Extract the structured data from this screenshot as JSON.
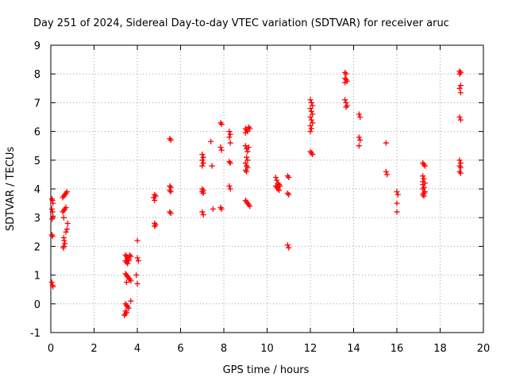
{
  "chart_data": {
    "type": "scatter",
    "title": "Day 251 of 2024, Sidereal Day-to-day VTEC variation (SDTVAR) for receiver aruc",
    "xlabel": "GPS time / hours",
    "ylabel": "SDTVAR / TECUs",
    "xlim": [
      0,
      20
    ],
    "ylim": [
      -1,
      9
    ],
    "xticks": [
      0,
      2,
      4,
      6,
      8,
      10,
      12,
      14,
      16,
      18,
      20
    ],
    "yticks": [
      -1,
      0,
      1,
      2,
      3,
      4,
      5,
      6,
      7,
      8,
      9
    ],
    "grid": true,
    "marker": "+",
    "color": "#ff0000",
    "series": [
      {
        "name": "SDTVAR",
        "points": [
          [
            0.05,
            3.65
          ],
          [
            0.08,
            3.6
          ],
          [
            0.1,
            3.5
          ],
          [
            0.05,
            3.3
          ],
          [
            0.08,
            3.2
          ],
          [
            0.1,
            3.05
          ],
          [
            0.06,
            2.95
          ],
          [
            0.05,
            2.4
          ],
          [
            0.08,
            2.35
          ],
          [
            0.05,
            0.75
          ],
          [
            0.08,
            0.65
          ],
          [
            0.1,
            0.6
          ],
          [
            0.55,
            3.7
          ],
          [
            0.6,
            3.75
          ],
          [
            0.65,
            3.8
          ],
          [
            0.7,
            3.85
          ],
          [
            0.75,
            3.9
          ],
          [
            0.55,
            3.2
          ],
          [
            0.6,
            3.25
          ],
          [
            0.65,
            3.3
          ],
          [
            0.7,
            3.35
          ],
          [
            0.6,
            3.0
          ],
          [
            0.6,
            2.3
          ],
          [
            0.62,
            2.2
          ],
          [
            0.65,
            2.1
          ],
          [
            0.6,
            2.0
          ],
          [
            0.58,
            1.95
          ],
          [
            0.7,
            2.5
          ],
          [
            0.75,
            2.6
          ],
          [
            0.78,
            2.8
          ],
          [
            3.45,
            1.7
          ],
          [
            3.5,
            1.65
          ],
          [
            3.55,
            1.6
          ],
          [
            3.6,
            1.55
          ],
          [
            3.65,
            1.7
          ],
          [
            3.7,
            1.65
          ],
          [
            3.45,
            1.5
          ],
          [
            3.5,
            1.45
          ],
          [
            3.55,
            1.4
          ],
          [
            3.6,
            1.5
          ],
          [
            3.45,
            1.05
          ],
          [
            3.5,
            1.0
          ],
          [
            3.55,
            0.95
          ],
          [
            3.6,
            0.9
          ],
          [
            3.65,
            0.85
          ],
          [
            3.7,
            0.8
          ],
          [
            3.5,
            0.75
          ],
          [
            3.45,
            0.0
          ],
          [
            3.5,
            -0.05
          ],
          [
            3.55,
            -0.1
          ],
          [
            3.6,
            -0.15
          ],
          [
            3.45,
            -0.25
          ],
          [
            3.5,
            -0.3
          ],
          [
            3.45,
            -0.35
          ],
          [
            3.4,
            -0.4
          ],
          [
            3.7,
            0.1
          ],
          [
            4.0,
            2.2
          ],
          [
            4.0,
            1.6
          ],
          [
            4.05,
            1.5
          ],
          [
            3.95,
            1.0
          ],
          [
            4.0,
            0.7
          ],
          [
            4.8,
            3.8
          ],
          [
            4.85,
            3.75
          ],
          [
            4.75,
            3.7
          ],
          [
            4.8,
            3.6
          ],
          [
            4.8,
            2.8
          ],
          [
            4.85,
            2.75
          ],
          [
            4.8,
            2.7
          ],
          [
            5.5,
            5.75
          ],
          [
            5.55,
            5.7
          ],
          [
            5.5,
            4.1
          ],
          [
            5.55,
            4.05
          ],
          [
            5.5,
            3.95
          ],
          [
            5.55,
            3.9
          ],
          [
            5.5,
            3.2
          ],
          [
            5.55,
            3.15
          ],
          [
            7.0,
            5.2
          ],
          [
            7.05,
            5.1
          ],
          [
            7.0,
            5.0
          ],
          [
            7.05,
            4.9
          ],
          [
            7.0,
            4.8
          ],
          [
            7.0,
            4.0
          ],
          [
            7.05,
            3.95
          ],
          [
            7.0,
            3.9
          ],
          [
            7.05,
            3.85
          ],
          [
            7.0,
            3.2
          ],
          [
            7.05,
            3.1
          ],
          [
            7.4,
            5.65
          ],
          [
            7.45,
            4.8
          ],
          [
            7.5,
            3.3
          ],
          [
            7.85,
            6.3
          ],
          [
            7.9,
            6.25
          ],
          [
            7.85,
            5.45
          ],
          [
            7.9,
            5.35
          ],
          [
            7.85,
            3.35
          ],
          [
            7.9,
            3.3
          ],
          [
            8.25,
            6.0
          ],
          [
            8.3,
            5.9
          ],
          [
            8.25,
            5.8
          ],
          [
            8.3,
            5.6
          ],
          [
            8.25,
            4.95
          ],
          [
            8.3,
            4.9
          ],
          [
            8.25,
            4.1
          ],
          [
            8.3,
            4.0
          ],
          [
            9.0,
            6.1
          ],
          [
            9.05,
            6.05
          ],
          [
            9.1,
            6.0
          ],
          [
            9.15,
            6.15
          ],
          [
            9.2,
            6.1
          ],
          [
            9.0,
            5.95
          ],
          [
            9.0,
            5.5
          ],
          [
            9.05,
            5.4
          ],
          [
            9.1,
            5.3
          ],
          [
            9.15,
            5.45
          ],
          [
            9.05,
            5.1
          ],
          [
            9.1,
            5.0
          ],
          [
            9.0,
            4.9
          ],
          [
            9.05,
            4.8
          ],
          [
            9.1,
            4.75
          ],
          [
            9.0,
            4.65
          ],
          [
            9.05,
            4.6
          ],
          [
            9.0,
            3.6
          ],
          [
            9.05,
            3.55
          ],
          [
            9.1,
            3.5
          ],
          [
            9.15,
            3.45
          ],
          [
            9.2,
            3.4
          ],
          [
            10.4,
            4.4
          ],
          [
            10.45,
            4.3
          ],
          [
            10.5,
            4.2
          ],
          [
            10.55,
            4.15
          ],
          [
            10.4,
            4.1
          ],
          [
            10.45,
            4.05
          ],
          [
            10.5,
            4.0
          ],
          [
            10.55,
            3.95
          ],
          [
            10.6,
            4.1
          ],
          [
            10.95,
            4.45
          ],
          [
            11.0,
            4.4
          ],
          [
            10.95,
            3.85
          ],
          [
            11.0,
            3.8
          ],
          [
            10.95,
            2.05
          ],
          [
            11.0,
            1.95
          ],
          [
            12.0,
            7.1
          ],
          [
            12.05,
            7.0
          ],
          [
            12.1,
            6.9
          ],
          [
            12.0,
            6.8
          ],
          [
            12.05,
            6.7
          ],
          [
            12.1,
            6.6
          ],
          [
            12.0,
            6.5
          ],
          [
            12.05,
            6.4
          ],
          [
            12.1,
            6.3
          ],
          [
            12.0,
            6.2
          ],
          [
            12.05,
            6.1
          ],
          [
            12.0,
            6.0
          ],
          [
            12.0,
            5.3
          ],
          [
            12.05,
            5.25
          ],
          [
            12.1,
            5.2
          ],
          [
            13.6,
            8.05
          ],
          [
            13.65,
            8.0
          ],
          [
            13.6,
            7.85
          ],
          [
            13.65,
            7.8
          ],
          [
            13.7,
            7.75
          ],
          [
            13.6,
            7.7
          ],
          [
            13.6,
            7.1
          ],
          [
            13.65,
            7.0
          ],
          [
            13.7,
            6.9
          ],
          [
            13.65,
            6.85
          ],
          [
            14.25,
            6.6
          ],
          [
            14.3,
            6.5
          ],
          [
            14.25,
            5.8
          ],
          [
            14.3,
            5.7
          ],
          [
            14.25,
            5.5
          ],
          [
            15.5,
            5.6
          ],
          [
            15.5,
            4.6
          ],
          [
            15.55,
            4.5
          ],
          [
            16.0,
            3.9
          ],
          [
            16.05,
            3.8
          ],
          [
            16.0,
            3.5
          ],
          [
            16.0,
            3.2
          ],
          [
            17.2,
            4.9
          ],
          [
            17.25,
            4.85
          ],
          [
            17.3,
            4.8
          ],
          [
            17.2,
            4.45
          ],
          [
            17.25,
            4.35
          ],
          [
            17.2,
            4.25
          ],
          [
            17.3,
            4.2
          ],
          [
            17.2,
            4.15
          ],
          [
            17.25,
            4.05
          ],
          [
            17.2,
            4.0
          ],
          [
            17.3,
            3.9
          ],
          [
            17.25,
            3.85
          ],
          [
            17.2,
            3.8
          ],
          [
            17.25,
            3.75
          ],
          [
            18.9,
            8.1
          ],
          [
            18.95,
            8.05
          ],
          [
            18.9,
            8.0
          ],
          [
            18.95,
            7.6
          ],
          [
            18.9,
            7.5
          ],
          [
            18.95,
            7.35
          ],
          [
            18.9,
            6.5
          ],
          [
            18.95,
            6.4
          ],
          [
            18.9,
            5.0
          ],
          [
            18.95,
            4.9
          ],
          [
            18.9,
            4.8
          ],
          [
            18.95,
            4.75
          ],
          [
            18.9,
            4.6
          ],
          [
            18.95,
            4.55
          ]
        ]
      }
    ]
  }
}
